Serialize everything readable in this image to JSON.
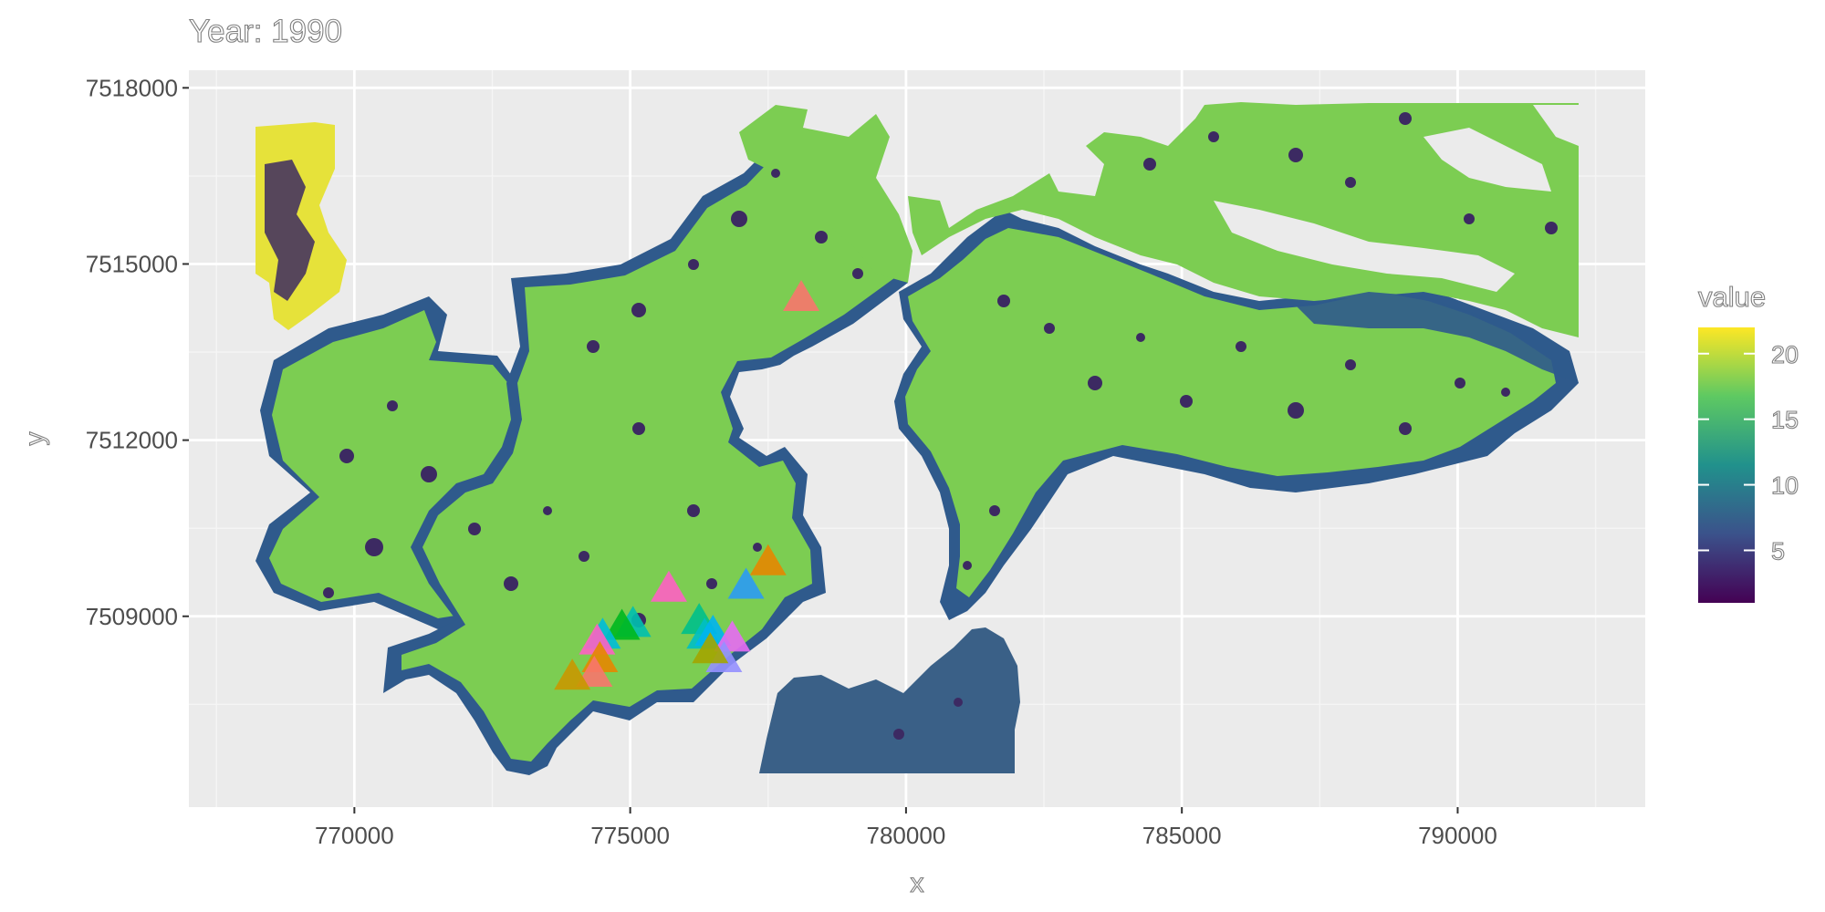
{
  "chart_data": {
    "type": "map",
    "title": "Year: 1990",
    "xlabel": "x",
    "ylabel": "y",
    "xlim": [
      767000,
      793400
    ],
    "ylim": [
      7505750,
      7518300
    ],
    "x_ticks": [
      770000,
      775000,
      780000,
      785000,
      790000
    ],
    "x_tick_labels": [
      "770000",
      "775000",
      "780000",
      "785000",
      "790000"
    ],
    "y_ticks": [
      7509000,
      7512000,
      7515000,
      7518000
    ],
    "y_tick_labels": [
      "7509000",
      "7512000",
      "7515000",
      "7518000"
    ],
    "grid": true,
    "raster_layer": {
      "description": "raster value field",
      "patches": [
        {
          "region": "northwest",
          "value": 21.5
        },
        {
          "region": "main islands",
          "value": 16
        },
        {
          "region": "island edges",
          "value": 6
        },
        {
          "region": "dark patches",
          "value": 1.5
        },
        {
          "region": "south block",
          "value": 8.5
        }
      ]
    },
    "legend": {
      "title": "value",
      "placement": "right",
      "range": [
        1,
        22
      ],
      "ticks": [
        5,
        10,
        15,
        20
      ],
      "tick_labels": [
        "5",
        "10",
        "15",
        "20"
      ],
      "colors": [
        "#440154",
        "#3b528b",
        "#21918c",
        "#5ec962",
        "#fde725"
      ]
    },
    "points": [
      {
        "x": 778100,
        "y": 7514400,
        "color": "#f8766d"
      },
      {
        "x": 777500,
        "y": 7509900,
        "color": "#e58700"
      },
      {
        "x": 777100,
        "y": 7509500,
        "color": "#2b9bf4"
      },
      {
        "x": 775700,
        "y": 7509450,
        "color": "#ff61c3"
      },
      {
        "x": 775050,
        "y": 7508850,
        "color": "#00c0af"
      },
      {
        "x": 774850,
        "y": 7508800,
        "color": "#00b81f"
      },
      {
        "x": 774500,
        "y": 7508650,
        "color": "#00bcd8"
      },
      {
        "x": 774400,
        "y": 7508550,
        "color": "#ff61c3"
      },
      {
        "x": 774450,
        "y": 7508250,
        "color": "#e58700"
      },
      {
        "x": 774350,
        "y": 7508000,
        "color": "#f8766d"
      },
      {
        "x": 773950,
        "y": 7507950,
        "color": "#c99800"
      },
      {
        "x": 776250,
        "y": 7508900,
        "color": "#00c08b"
      },
      {
        "x": 776350,
        "y": 7508650,
        "color": "#00bfc4"
      },
      {
        "x": 776500,
        "y": 7508700,
        "color": "#00b4f0"
      },
      {
        "x": 776850,
        "y": 7508600,
        "color": "#e76bf3"
      },
      {
        "x": 776700,
        "y": 7508250,
        "color": "#9590ff"
      },
      {
        "x": 776450,
        "y": 7508400,
        "color": "#a3a500"
      }
    ]
  }
}
